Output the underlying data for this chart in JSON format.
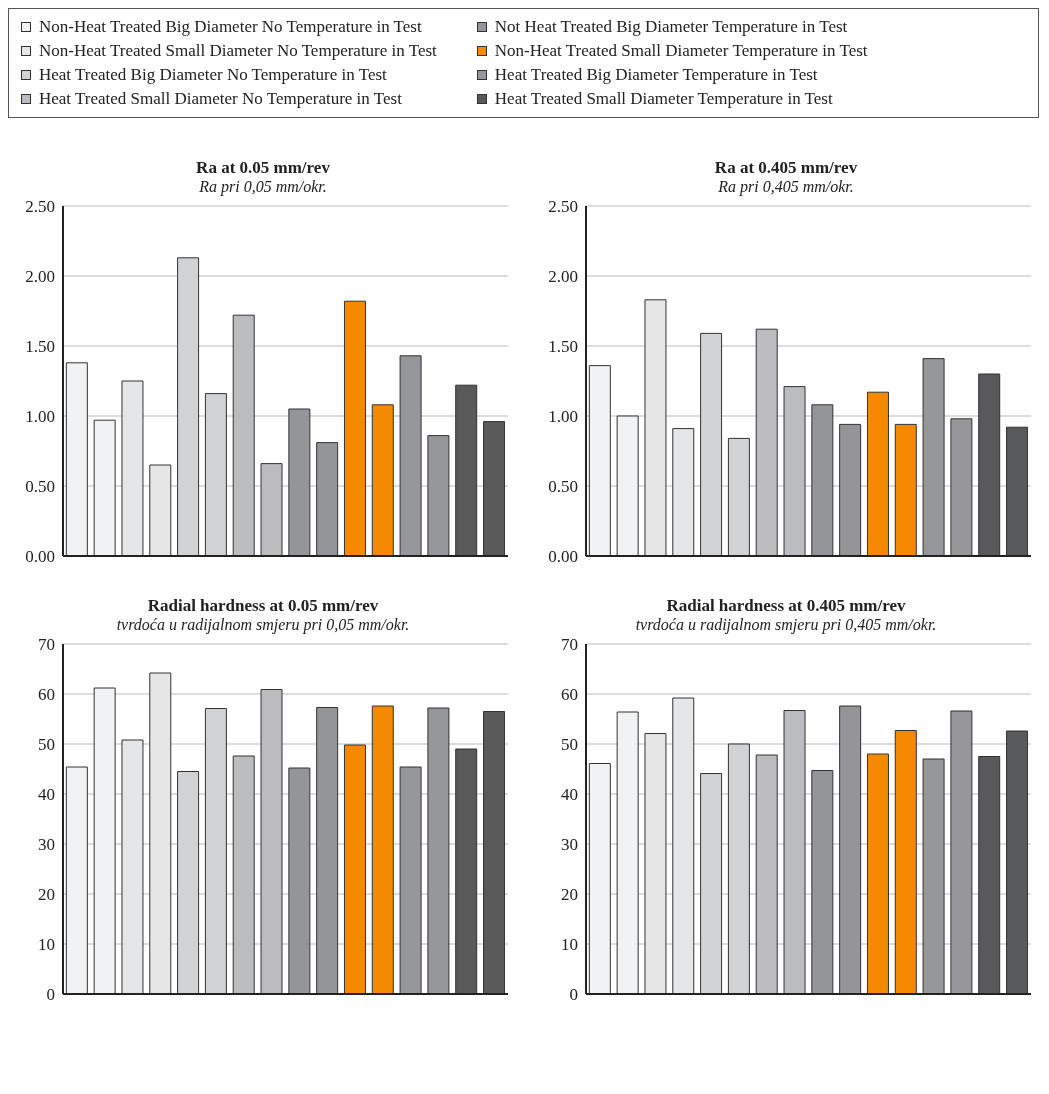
{
  "chart_data": [
    {
      "type": "bar",
      "title": "Ra at 0.05 mm/rev",
      "subtitle": "Ra pri 0,05 mm/okr.",
      "stacked": true,
      "legend": "top",
      "grid": "y",
      "categories": [
        null,
        null,
        null,
        null,
        null,
        null,
        null,
        null,
        null,
        null,
        null,
        null,
        null,
        null,
        null,
        null
      ],
      "ylim": [
        0,
        2.5
      ],
      "yticks": [
        {
          "value": 0,
          "label": "0.00"
        },
        {
          "value": 0.5,
          "label": "0.50"
        },
        {
          "value": 1,
          "label": "1.00"
        },
        {
          "value": 1.5,
          "label": "1.50"
        },
        {
          "value": 2,
          "label": "2.00"
        },
        {
          "value": 2.5,
          "label": "2.50"
        }
      ],
      "series": [
        {
          "name": "Non-Heat Treated Big Diameter No Temperature in Test",
          "color": "#f1f2f3",
          "values": [
            1.38,
            0.97,
            null,
            null,
            null,
            null,
            null,
            null,
            null,
            null,
            null,
            null,
            null,
            null,
            null,
            null
          ]
        },
        {
          "name": "Non-Heat Treated Small Diameter No Temperature in Test",
          "color": "#e5e6e8",
          "values": [
            null,
            null,
            1.25,
            0.65,
            null,
            null,
            null,
            null,
            null,
            null,
            null,
            null,
            null,
            null,
            null,
            null
          ]
        },
        {
          "name": "Heat Treated Big Diameter No Temperature in Test",
          "color": "#d1d2d4",
          "values": [
            null,
            null,
            null,
            null,
            2.13,
            1.16,
            null,
            null,
            null,
            null,
            null,
            null,
            null,
            null,
            null,
            null
          ]
        },
        {
          "name": "Heat Treated Small Diameter No Temperature in Test",
          "color": "#bbbcbf",
          "values": [
            null,
            null,
            null,
            null,
            null,
            null,
            1.72,
            0.66,
            null,
            null,
            null,
            null,
            null,
            null,
            null,
            null
          ]
        },
        {
          "name": "Not Heat Treated Big Diameter Temperature in Test",
          "color": "#939598",
          "values": [
            null,
            null,
            null,
            null,
            null,
            null,
            null,
            null,
            1.05,
            0.81,
            null,
            null,
            null,
            null,
            null,
            null
          ]
        },
        {
          "name": "Non-Heat Treated Small Diameter Temperature in Test",
          "color": "#f58a00",
          "values": [
            null,
            null,
            null,
            null,
            null,
            null,
            null,
            null,
            null,
            null,
            1.82,
            1.08,
            null,
            null,
            null,
            null
          ]
        },
        {
          "name": "Heat Treated Big Diameter Temperature in Test",
          "color": "#96979a",
          "values": [
            null,
            null,
            null,
            null,
            null,
            null,
            null,
            null,
            null,
            null,
            null,
            null,
            1.43,
            0.86,
            null,
            null
          ]
        },
        {
          "name": "Heat Treated Small Diameter Temperature in Test",
          "color": "#58595b",
          "values": [
            null,
            null,
            null,
            null,
            null,
            null,
            null,
            null,
            null,
            null,
            null,
            null,
            null,
            null,
            1.22,
            0.96
          ]
        }
      ]
    },
    {
      "type": "bar",
      "title": "Ra at 0.405 mm/rev",
      "subtitle": "Ra pri 0,405 mm/okr.",
      "stacked": true,
      "grid": "y",
      "categories": [
        null,
        null,
        null,
        null,
        null,
        null,
        null,
        null,
        null,
        null,
        null,
        null,
        null,
        null,
        null,
        null
      ],
      "ylim": [
        0,
        2.5
      ],
      "yticks": [
        {
          "value": 0,
          "label": "0.00"
        },
        {
          "value": 0.5,
          "label": "0.50"
        },
        {
          "value": 1,
          "label": "1.00"
        },
        {
          "value": 1.5,
          "label": "1.50"
        },
        {
          "value": 2,
          "label": "2.00"
        },
        {
          "value": 2.5,
          "label": "2.50"
        }
      ],
      "series": [
        {
          "color": "#f1f2f3",
          "values": [
            1.36,
            1.0,
            null,
            null,
            null,
            null,
            null,
            null,
            null,
            null,
            null,
            null,
            null,
            null,
            null,
            null
          ]
        },
        {
          "color": "#e5e6e8",
          "values": [
            null,
            null,
            1.83,
            0.91,
            null,
            null,
            null,
            null,
            null,
            null,
            null,
            null,
            null,
            null,
            null,
            null
          ]
        },
        {
          "color": "#d1d2d4",
          "values": [
            null,
            null,
            null,
            null,
            1.59,
            0.84,
            null,
            null,
            null,
            null,
            null,
            null,
            null,
            null,
            null,
            null
          ]
        },
        {
          "color": "#bbbcbf",
          "values": [
            null,
            null,
            null,
            null,
            null,
            null,
            1.62,
            1.21,
            null,
            null,
            null,
            null,
            null,
            null,
            null,
            null
          ]
        },
        {
          "color": "#939598",
          "values": [
            null,
            null,
            null,
            null,
            null,
            null,
            null,
            null,
            1.08,
            0.94,
            null,
            null,
            null,
            null,
            null,
            null
          ]
        },
        {
          "color": "#f58a00",
          "values": [
            null,
            null,
            null,
            null,
            null,
            null,
            null,
            null,
            null,
            null,
            1.17,
            0.94,
            null,
            null,
            null,
            null
          ]
        },
        {
          "color": "#96979a",
          "values": [
            null,
            null,
            null,
            null,
            null,
            null,
            null,
            null,
            null,
            null,
            null,
            null,
            1.41,
            0.98,
            null,
            null
          ]
        },
        {
          "color": "#58595b",
          "values": [
            null,
            null,
            null,
            null,
            null,
            null,
            null,
            null,
            null,
            null,
            null,
            null,
            null,
            null,
            1.3,
            0.92
          ]
        }
      ]
    },
    {
      "type": "bar",
      "title": "Radial hardness at 0.05 mm/rev",
      "subtitle": "tvrdoća u radijalnom smjeru pri 0,05 mm/okr.",
      "stacked": true,
      "grid": "y",
      "categories": [
        null,
        null,
        null,
        null,
        null,
        null,
        null,
        null,
        null,
        null,
        null,
        null,
        null,
        null,
        null,
        null
      ],
      "ylim": [
        0,
        70
      ],
      "yticks": [
        0,
        10,
        20,
        30,
        40,
        50,
        60,
        70
      ],
      "series": [
        {
          "color": "#f1f2f3",
          "values": [
            45.4,
            61.2,
            null,
            null,
            null,
            null,
            null,
            null,
            null,
            null,
            null,
            null,
            null,
            null,
            null,
            null
          ]
        },
        {
          "color": "#e5e6e8",
          "values": [
            null,
            null,
            50.8,
            64.2,
            null,
            null,
            null,
            null,
            null,
            null,
            null,
            null,
            null,
            null,
            null,
            null
          ]
        },
        {
          "color": "#d1d2d4",
          "values": [
            null,
            null,
            null,
            null,
            44.5,
            57.1,
            null,
            null,
            null,
            null,
            null,
            null,
            null,
            null,
            null,
            null
          ]
        },
        {
          "color": "#bbbcbf",
          "values": [
            null,
            null,
            null,
            null,
            null,
            null,
            47.6,
            60.9,
            null,
            null,
            null,
            null,
            null,
            null,
            null,
            null
          ]
        },
        {
          "color": "#939598",
          "values": [
            null,
            null,
            null,
            null,
            null,
            null,
            null,
            null,
            45.2,
            57.3,
            null,
            null,
            null,
            null,
            null,
            null
          ]
        },
        {
          "color": "#f58a00",
          "values": [
            null,
            null,
            null,
            null,
            null,
            null,
            null,
            null,
            null,
            null,
            49.8,
            57.6,
            null,
            null,
            null,
            null
          ]
        },
        {
          "color": "#96979a",
          "values": [
            null,
            null,
            null,
            null,
            null,
            null,
            null,
            null,
            null,
            null,
            null,
            null,
            45.4,
            57.2,
            null,
            null
          ]
        },
        {
          "color": "#58595b",
          "values": [
            null,
            null,
            null,
            null,
            null,
            null,
            null,
            null,
            null,
            null,
            null,
            null,
            null,
            null,
            49.0,
            56.5
          ]
        }
      ]
    },
    {
      "type": "bar",
      "title": "Radial hardness at 0.405 mm/rev",
      "subtitle": "tvrdoća u radijalnom smjeru pri 0,405 mm/okr.",
      "stacked": true,
      "grid": "y",
      "categories": [
        null,
        null,
        null,
        null,
        null,
        null,
        null,
        null,
        null,
        null,
        null,
        null,
        null,
        null,
        null,
        null
      ],
      "ylim": [
        0,
        70
      ],
      "yticks": [
        0,
        10,
        20,
        30,
        40,
        50,
        60,
        70
      ],
      "series": [
        {
          "color": "#f1f2f3",
          "values": [
            46.1,
            56.4,
            null,
            null,
            null,
            null,
            null,
            null,
            null,
            null,
            null,
            null,
            null,
            null,
            null,
            null
          ]
        },
        {
          "color": "#e5e6e8",
          "values": [
            null,
            null,
            52.1,
            59.2,
            null,
            null,
            null,
            null,
            null,
            null,
            null,
            null,
            null,
            null,
            null,
            null
          ]
        },
        {
          "color": "#d1d2d4",
          "values": [
            null,
            null,
            null,
            null,
            44.1,
            50.0,
            null,
            null,
            null,
            null,
            null,
            null,
            null,
            null,
            null,
            null
          ]
        },
        {
          "color": "#bbbcbf",
          "values": [
            null,
            null,
            null,
            null,
            null,
            null,
            47.8,
            56.7,
            null,
            null,
            null,
            null,
            null,
            null,
            null,
            null
          ]
        },
        {
          "color": "#939598",
          "values": [
            null,
            null,
            null,
            null,
            null,
            null,
            null,
            null,
            44.7,
            57.6,
            null,
            null,
            null,
            null,
            null,
            null
          ]
        },
        {
          "color": "#f58a00",
          "values": [
            null,
            null,
            null,
            null,
            null,
            null,
            null,
            null,
            null,
            null,
            48.0,
            52.7,
            null,
            null,
            null,
            null
          ]
        },
        {
          "color": "#96979a",
          "values": [
            null,
            null,
            null,
            null,
            null,
            null,
            null,
            null,
            null,
            null,
            null,
            null,
            47.0,
            56.6,
            null,
            null
          ]
        },
        {
          "color": "#58595b",
          "values": [
            null,
            null,
            null,
            null,
            null,
            null,
            null,
            null,
            null,
            null,
            null,
            null,
            null,
            null,
            47.5,
            52.6
          ]
        }
      ]
    }
  ]
}
